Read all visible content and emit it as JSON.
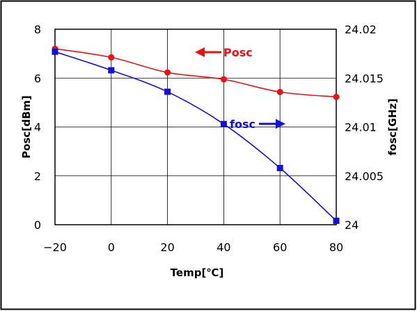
{
  "chart_data": {
    "type": "line",
    "title": "",
    "xlabel": "Temp[℃]",
    "ylabel_left": "Posc[dBm]",
    "ylabel_right": "fosc[GHz]",
    "xlim": [
      -20,
      80
    ],
    "ylim_left": [
      0,
      8
    ],
    "ylim_right": [
      24,
      24.02
    ],
    "x_ticks": [
      -20,
      0,
      20,
      40,
      60,
      80
    ],
    "x_tick_labels": [
      "−20",
      "0",
      "20",
      "40",
      "60",
      "80"
    ],
    "y_left_ticks": [
      0,
      2,
      4,
      6,
      8
    ],
    "y_left_tick_labels": [
      "0",
      "2",
      "4",
      "6",
      "8"
    ],
    "y_right_ticks": [
      24,
      24.005,
      24.01,
      24.015,
      24.02
    ],
    "y_right_tick_labels": [
      "24",
      "24.005",
      "24.01",
      "24.015",
      "24.02"
    ],
    "grid": true,
    "series": [
      {
        "name": "Posc",
        "axis": "left",
        "color": "#ee1111",
        "marker": "circle",
        "x": [
          -20,
          0,
          20,
          40,
          60,
          80
        ],
        "values": [
          7.2,
          6.85,
          6.23,
          5.95,
          5.43,
          5.23
        ]
      },
      {
        "name": "fosc",
        "axis": "right",
        "color": "#1111dd",
        "marker": "square",
        "x": [
          -20,
          0,
          20,
          40,
          60,
          80
        ],
        "values": [
          24.0177,
          24.0158,
          24.0136,
          24.0103,
          24.0058,
          24.0004
        ]
      }
    ],
    "annotations": [
      {
        "text": "Posc",
        "series": "Posc",
        "arrow": "left",
        "color": "#ee1111"
      },
      {
        "text": "fosc",
        "series": "fosc",
        "arrow": "right",
        "color": "#1111dd"
      }
    ],
    "colors": {
      "axis": "#000000",
      "grid": "#000000",
      "border": "#000000"
    }
  }
}
